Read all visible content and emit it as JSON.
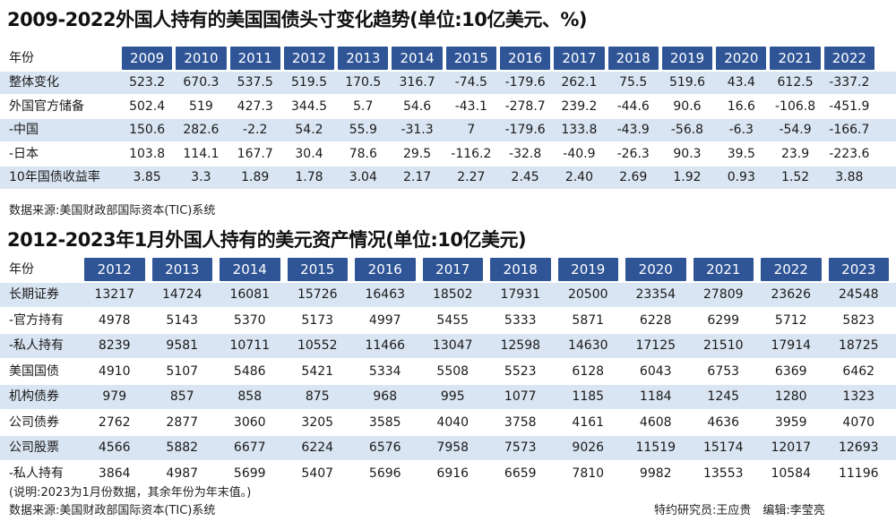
{
  "table1": {
    "title": "2009-2022外国人持有的美国国债头寸变化趋势(单位:10亿美元、%)",
    "header_label": "年份",
    "years": [
      "2009",
      "2010",
      "2011",
      "2012",
      "2013",
      "2014",
      "2015",
      "2016",
      "2017",
      "2018",
      "2019",
      "2020",
      "2021",
      "2022"
    ],
    "rows": [
      {
        "label": "整体变化",
        "values": [
          "523.2",
          "670.3",
          "537.5",
          "519.5",
          "170.5",
          "316.7",
          "-74.5",
          "-179.6",
          "262.1",
          "75.5",
          "519.6",
          "43.4",
          "612.5",
          "-337.2"
        ]
      },
      {
        "label": "外国官方储备",
        "values": [
          "502.4",
          "519",
          "427.3",
          "344.5",
          "5.7",
          "54.6",
          "-43.1",
          "-278.7",
          "239.2",
          "-44.6",
          "90.6",
          "16.6",
          "-106.8",
          "-451.9"
        ]
      },
      {
        "label": "-中国",
        "values": [
          "150.6",
          "282.6",
          "-2.2",
          "54.2",
          "55.9",
          "-31.3",
          "7",
          "-179.6",
          "133.8",
          "-43.9",
          "-56.8",
          "-6.3",
          "-54.9",
          "-166.7"
        ]
      },
      {
        "label": "-日本",
        "values": [
          "103.8",
          "114.1",
          "167.7",
          "30.4",
          "78.6",
          "29.5",
          "-116.2",
          "-32.8",
          "-40.9",
          "-26.3",
          "90.3",
          "39.5",
          "23.9",
          "-223.6"
        ]
      },
      {
        "label": "10年国债收益率",
        "values": [
          "3.85",
          "3.3",
          "1.89",
          "1.78",
          "3.04",
          "2.17",
          "2.27",
          "2.45",
          "2.40",
          "2.69",
          "1.92",
          "0.93",
          "1.52",
          "3.88"
        ]
      }
    ],
    "source": "数据来源:美国财政部国际资本(TIC)系统"
  },
  "table2": {
    "title": "2012-2023年1月外国人持有的美元资产情况(单位:10亿美元)",
    "header_label": "年份",
    "years": [
      "2012",
      "2013",
      "2014",
      "2015",
      "2016",
      "2017",
      "2018",
      "2019",
      "2020",
      "2021",
      "2022",
      "2023"
    ],
    "rows": [
      {
        "label": "长期证券",
        "values": [
          "13217",
          "14724",
          "16081",
          "15726",
          "16463",
          "18502",
          "17931",
          "20500",
          "23354",
          "27809",
          "23626",
          "24548"
        ]
      },
      {
        "label": "-官方持有",
        "values": [
          "4978",
          "5143",
          "5370",
          "5173",
          "4997",
          "5455",
          "5333",
          "5871",
          "6228",
          "6299",
          "5712",
          "5823"
        ]
      },
      {
        "label": "-私人持有",
        "values": [
          "8239",
          "9581",
          "10711",
          "10552",
          "11466",
          "13047",
          "12598",
          "14630",
          "17125",
          "21510",
          "17914",
          "18725"
        ]
      },
      {
        "label": "美国国债",
        "values": [
          "4910",
          "5107",
          "5486",
          "5421",
          "5334",
          "5508",
          "5523",
          "6128",
          "6043",
          "6753",
          "6369",
          "6462"
        ]
      },
      {
        "label": "机构债券",
        "values": [
          "979",
          "857",
          "858",
          "875",
          "968",
          "995",
          "1077",
          "1185",
          "1184",
          "1245",
          "1280",
          "1323"
        ]
      },
      {
        "label": "公司债券",
        "values": [
          "2762",
          "2877",
          "3060",
          "3205",
          "3585",
          "4040",
          "3758",
          "4161",
          "4608",
          "4636",
          "3959",
          "4070"
        ]
      },
      {
        "label": "公司股票",
        "values": [
          "4566",
          "5882",
          "6677",
          "6224",
          "6576",
          "7958",
          "7573",
          "9026",
          "11519",
          "15174",
          "12017",
          "12693"
        ]
      },
      {
        "label": "-私人持有",
        "values": [
          "3864",
          "4987",
          "5699",
          "5407",
          "5696",
          "6916",
          "6659",
          "7810",
          "9982",
          "13553",
          "10584",
          "11196"
        ]
      }
    ],
    "note": "(说明:2023为1月份数据，其余年份为年末值。)",
    "source": "数据来源:美国财政部国际资本(TIC)系统",
    "credits": "特约研究员:王应贵　编辑:李莹亮"
  }
}
